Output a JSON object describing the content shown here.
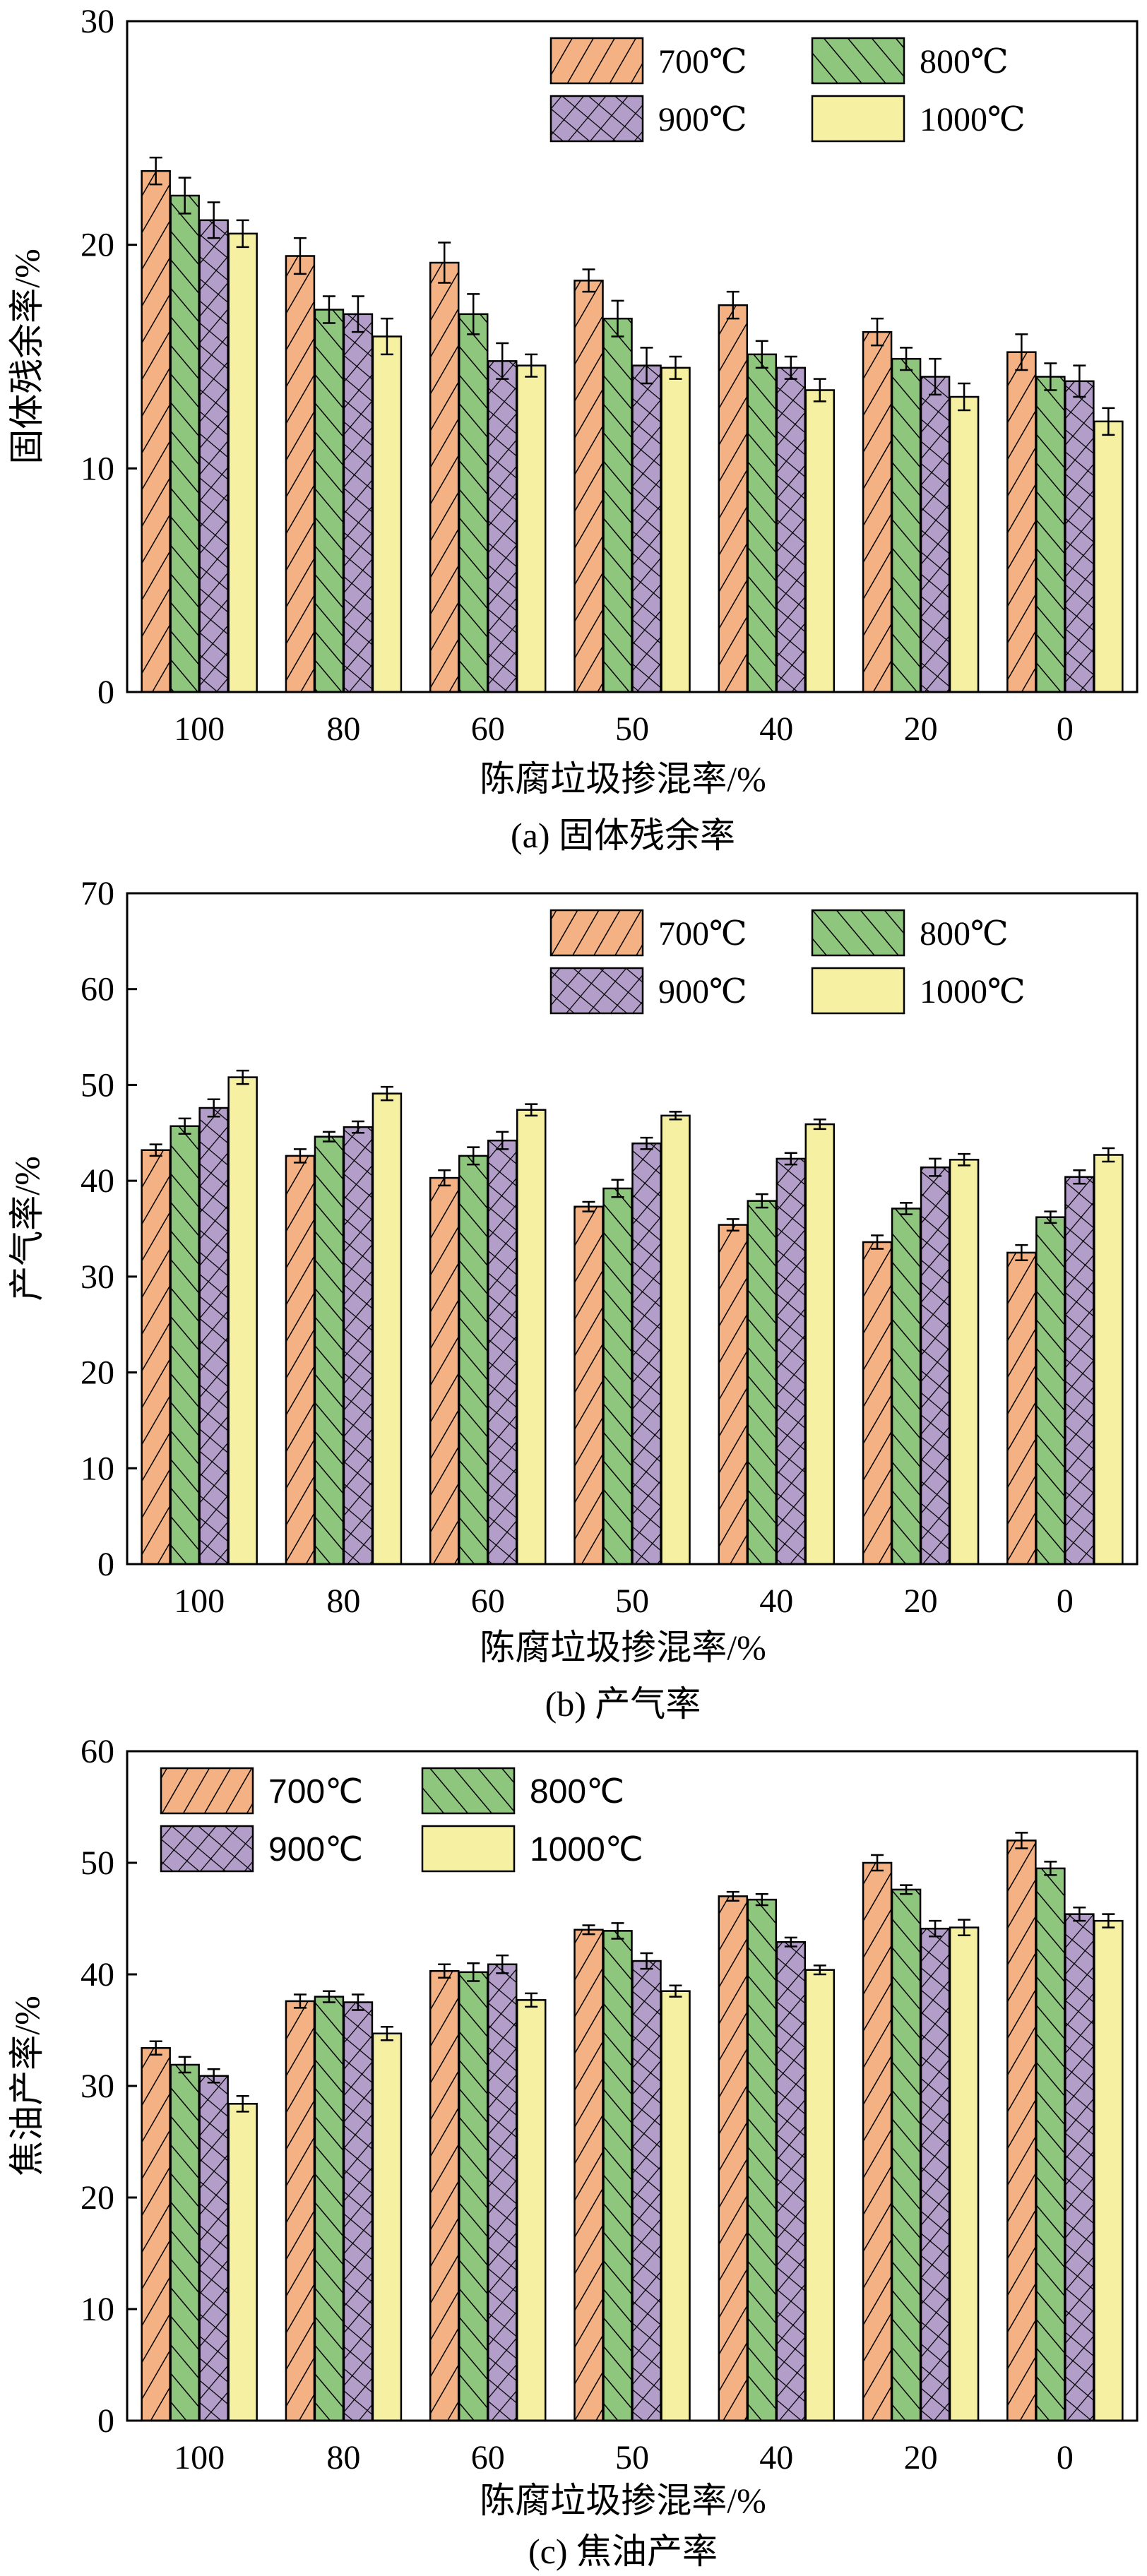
{
  "colors": {
    "s700": "#F4B183",
    "s800": "#8FC67E",
    "s900": "#B39EC9",
    "s1000": "#F5F0A2",
    "line": "#000000"
  },
  "chart_data": [
    {
      "type": "bar",
      "caption": "(a) 固体残余率",
      "xlabel": "陈腐垃圾掺混率/%",
      "ylabel": "固体残余率/%",
      "categories": [
        "100",
        "80",
        "60",
        "50",
        "40",
        "20",
        "0"
      ],
      "ylim": [
        0,
        30
      ],
      "yticks": [
        0,
        10,
        20,
        30
      ],
      "legend_position": "top-right",
      "series": [
        {
          "name": "700℃",
          "values": [
            23.3,
            19.5,
            19.2,
            18.4,
            17.3,
            16.1,
            15.2
          ],
          "errors": [
            0.6,
            0.8,
            0.9,
            0.5,
            0.6,
            0.6,
            0.8
          ]
        },
        {
          "name": "800℃",
          "values": [
            22.2,
            17.1,
            16.9,
            16.7,
            15.1,
            14.9,
            14.1
          ],
          "errors": [
            0.8,
            0.6,
            0.9,
            0.8,
            0.6,
            0.5,
            0.6
          ]
        },
        {
          "name": "900℃",
          "values": [
            21.1,
            16.9,
            14.8,
            14.6,
            14.5,
            14.1,
            13.9
          ],
          "errors": [
            0.8,
            0.8,
            0.8,
            0.8,
            0.5,
            0.8,
            0.7
          ]
        },
        {
          "name": "1000℃",
          "values": [
            20.5,
            15.9,
            14.6,
            14.5,
            13.5,
            13.2,
            12.1
          ],
          "errors": [
            0.6,
            0.8,
            0.5,
            0.5,
            0.5,
            0.6,
            0.6
          ]
        }
      ]
    },
    {
      "type": "bar",
      "caption": "(b) 产气率",
      "xlabel": "陈腐垃圾掺混率/%",
      "ylabel": "产气率/%",
      "categories": [
        "100",
        "80",
        "60",
        "50",
        "40",
        "20",
        "0"
      ],
      "ylim": [
        0,
        70
      ],
      "yticks": [
        0,
        10,
        20,
        30,
        40,
        50,
        60,
        70
      ],
      "legend_position": "top-right",
      "series": [
        {
          "name": "700℃",
          "values": [
            43.2,
            42.6,
            40.3,
            37.3,
            35.4,
            33.6,
            32.5
          ],
          "errors": [
            0.6,
            0.7,
            0.8,
            0.5,
            0.6,
            0.7,
            0.8
          ]
        },
        {
          "name": "800℃",
          "values": [
            45.7,
            44.6,
            42.6,
            39.2,
            37.9,
            37.1,
            36.2
          ],
          "errors": [
            0.8,
            0.5,
            0.9,
            0.9,
            0.7,
            0.6,
            0.6
          ]
        },
        {
          "name": "900℃",
          "values": [
            47.6,
            45.6,
            44.2,
            43.9,
            42.3,
            41.4,
            40.4
          ],
          "errors": [
            0.9,
            0.6,
            0.9,
            0.6,
            0.6,
            0.9,
            0.7
          ]
        },
        {
          "name": "1000℃",
          "values": [
            50.8,
            49.1,
            47.4,
            46.8,
            45.9,
            42.2,
            42.7
          ],
          "errors": [
            0.7,
            0.7,
            0.6,
            0.4,
            0.5,
            0.6,
            0.7
          ]
        }
      ]
    },
    {
      "type": "bar",
      "caption": "(c) 焦油产率",
      "xlabel": "陈腐垃圾掺混率/%",
      "ylabel": "焦油产率/%",
      "categories": [
        "100",
        "80",
        "60",
        "50",
        "40",
        "20",
        "0"
      ],
      "ylim": [
        0,
        60
      ],
      "yticks": [
        0,
        10,
        20,
        30,
        40,
        50,
        60
      ],
      "legend_position": "top-left",
      "series": [
        {
          "name": "700℃",
          "values": [
            33.4,
            37.6,
            40.3,
            44.0,
            47.0,
            50.0,
            52.0
          ],
          "errors": [
            0.6,
            0.6,
            0.6,
            0.4,
            0.4,
            0.7,
            0.7
          ]
        },
        {
          "name": "800℃",
          "values": [
            31.9,
            38.0,
            40.2,
            43.9,
            46.7,
            47.6,
            49.5
          ],
          "errors": [
            0.7,
            0.5,
            0.8,
            0.7,
            0.5,
            0.4,
            0.6
          ]
        },
        {
          "name": "900℃",
          "values": [
            30.9,
            37.5,
            40.9,
            41.2,
            42.9,
            44.1,
            45.4
          ],
          "errors": [
            0.6,
            0.7,
            0.8,
            0.7,
            0.4,
            0.7,
            0.6
          ]
        },
        {
          "name": "1000℃",
          "values": [
            28.4,
            34.7,
            37.7,
            38.5,
            40.4,
            44.2,
            44.8
          ],
          "errors": [
            0.7,
            0.6,
            0.6,
            0.5,
            0.4,
            0.7,
            0.6
          ]
        }
      ]
    }
  ]
}
